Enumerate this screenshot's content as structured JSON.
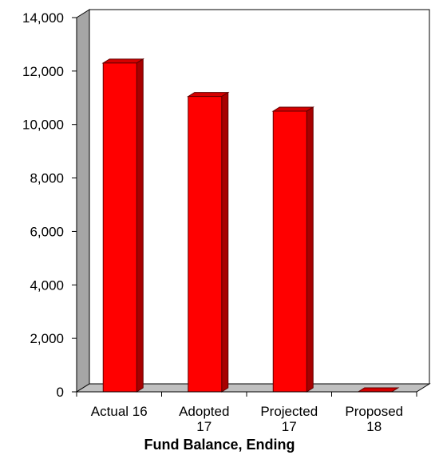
{
  "chart_data": {
    "type": "bar",
    "title": "Fund Balance, Ending",
    "categories": [
      [
        "Actual 16"
      ],
      [
        "Adopted",
        "17"
      ],
      [
        "Projected",
        "17"
      ],
      [
        "Proposed",
        "18"
      ]
    ],
    "values": [
      12300,
      11050,
      10500,
      0
    ],
    "ylim": [
      0,
      14000
    ],
    "yticks": [
      0,
      2000,
      4000,
      6000,
      8000,
      10000,
      12000,
      14000
    ],
    "ytick_labels": [
      "0",
      "2,000",
      "4,000",
      "6,000",
      "8,000",
      "10,000",
      "12,000",
      "14,000"
    ],
    "grid": false,
    "legend": "none",
    "colors": {
      "bar_front": "#ff0000",
      "bar_side": "#a80000",
      "bar_top": "#d40000",
      "wall": "#ffffff",
      "side_wall": "#a6a6a6",
      "floor": "#c0c0c0"
    }
  }
}
